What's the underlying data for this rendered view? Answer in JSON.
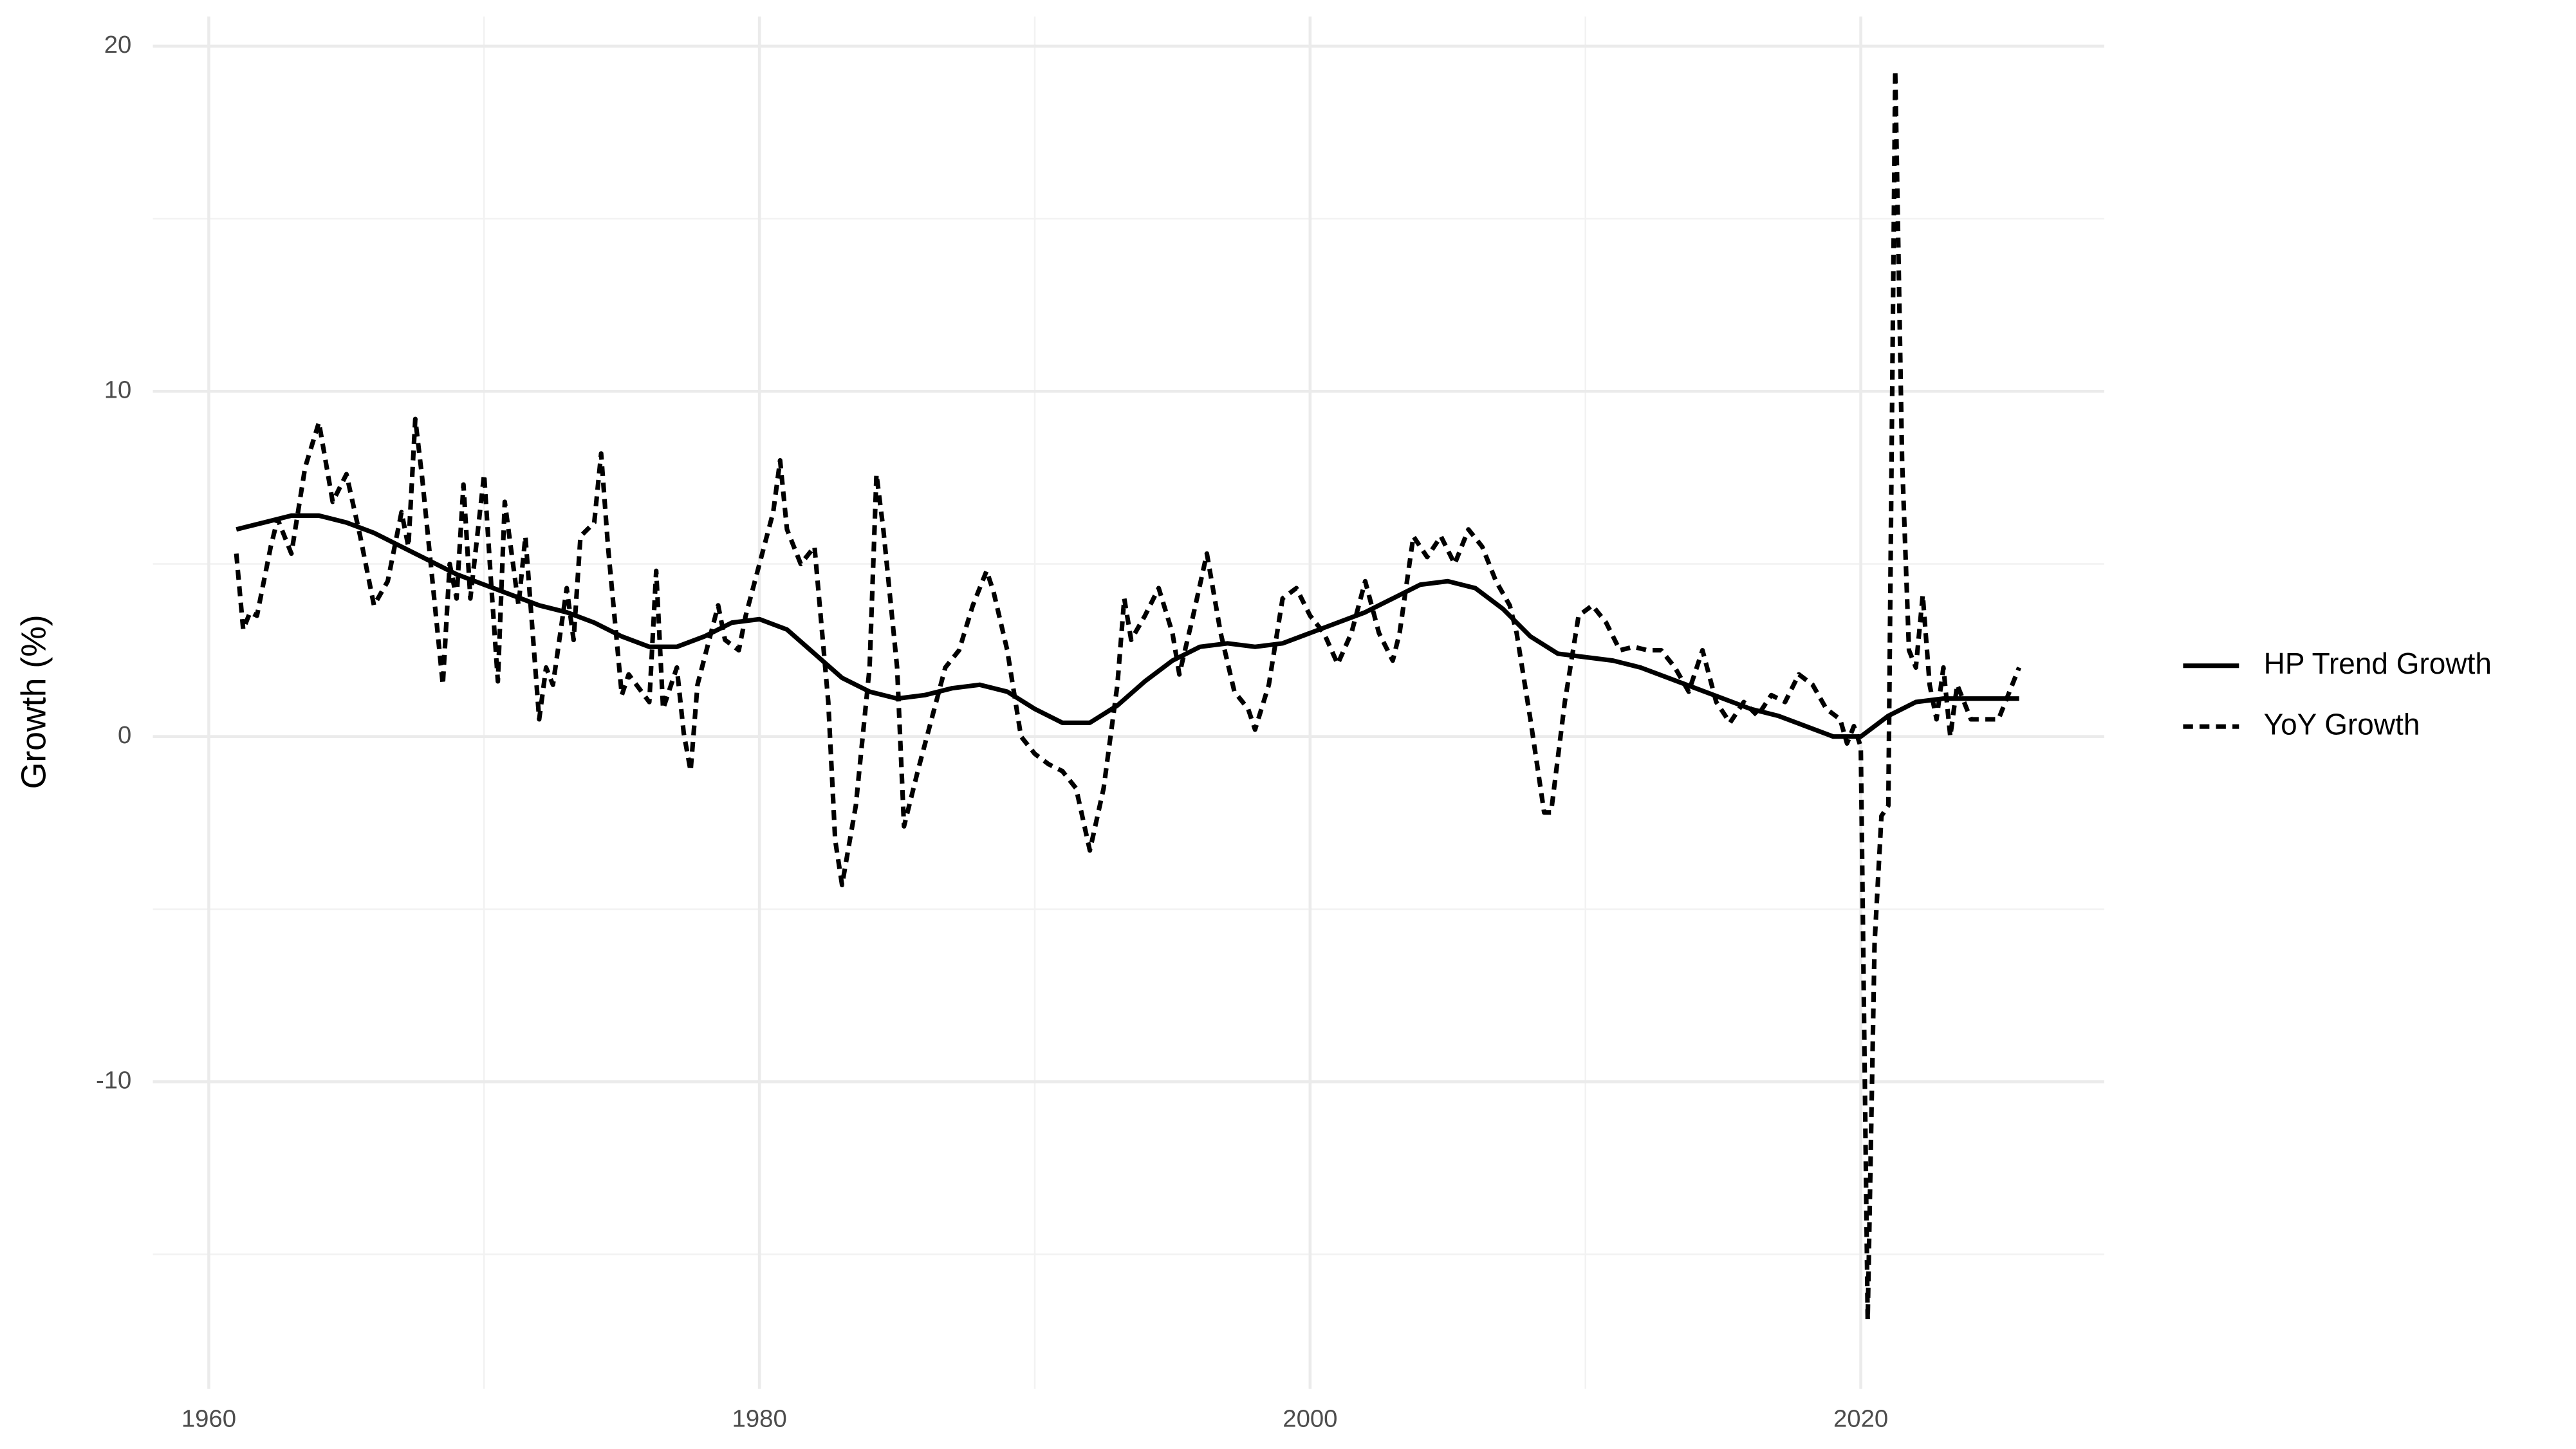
{
  "chart_data": {
    "type": "line",
    "y_label": "Growth (%)",
    "xlim": [
      1957.97,
      2028.84
    ],
    "xticks": [
      1960,
      1980,
      2000,
      2020
    ],
    "minor_xticks": [
      1970,
      1990,
      2010
    ],
    "ylim": [
      -18.9,
      20.86
    ],
    "yticks": [
      -10,
      0,
      10,
      20
    ],
    "minor_yticks": [
      -15,
      -5,
      5,
      15
    ],
    "grid": true,
    "legend": "right",
    "series": [
      {
        "name": "HP Trend Growth",
        "color": "#000000",
        "dash": false,
        "x": [
          1961,
          1962,
          1963,
          1964,
          1965,
          1966,
          1967,
          1968,
          1969,
          1970,
          1971,
          1972,
          1973,
          1974,
          1975,
          1976,
          1977,
          1978,
          1979,
          1980,
          1981,
          1982,
          1983,
          1984,
          1985,
          1986,
          1987,
          1988,
          1989,
          1990,
          1991,
          1992,
          1993,
          1994,
          1995,
          1996,
          1997,
          1998,
          1999,
          2000,
          2001,
          2002,
          2003,
          2004,
          2005,
          2006,
          2007,
          2008,
          2009,
          2010,
          2011,
          2012,
          2013,
          2014,
          2015,
          2016,
          2017,
          2018,
          2019,
          2020,
          2021,
          2022,
          2023,
          2024,
          2025,
          2025.75
        ],
        "values": [
          6.0,
          6.2,
          6.4,
          6.4,
          6.2,
          5.9,
          5.5,
          5.1,
          4.7,
          4.4,
          4.1,
          3.8,
          3.6,
          3.3,
          2.9,
          2.6,
          2.6,
          2.9,
          3.3,
          3.4,
          3.1,
          2.4,
          1.7,
          1.3,
          1.1,
          1.2,
          1.4,
          1.5,
          1.3,
          0.8,
          0.4,
          0.4,
          0.9,
          1.6,
          2.2,
          2.6,
          2.7,
          2.6,
          2.7,
          3.0,
          3.3,
          3.6,
          4.0,
          4.4,
          4.5,
          4.3,
          3.7,
          2.9,
          2.4,
          2.3,
          2.2,
          2.0,
          1.7,
          1.4,
          1.1,
          0.8,
          0.6,
          0.3,
          0.0,
          0.0,
          0.6,
          1.0,
          1.1,
          1.1,
          1.1,
          1.1
        ]
      },
      {
        "name": "YoY Growth",
        "color": "#000000",
        "dash": true,
        "x": [
          1961.0,
          1961.25,
          1961.5,
          1961.75,
          1962.25,
          1962.5,
          1963.0,
          1963.5,
          1964.0,
          1964.5,
          1965.0,
          1965.5,
          1966.0,
          1966.5,
          1967.0,
          1967.25,
          1967.5,
          1967.75,
          1968.0,
          1968.5,
          1968.75,
          1969.0,
          1969.25,
          1969.5,
          1970.0,
          1970.25,
          1970.5,
          1970.75,
          1971.25,
          1971.5,
          1972.0,
          1972.25,
          1972.5,
          1973.0,
          1973.25,
          1973.5,
          1974.0,
          1974.25,
          1974.5,
          1975.0,
          1975.25,
          1976.0,
          1976.25,
          1976.5,
          1977.0,
          1977.25,
          1977.5,
          1977.75,
          1978.5,
          1978.75,
          1979.25,
          1979.5,
          1980.0,
          1980.5,
          1980.75,
          1981.0,
          1981.25,
          1981.5,
          1982.0,
          1982.5,
          1982.75,
          1983.0,
          1983.5,
          1984.0,
          1984.25,
          1984.5,
          1985.0,
          1985.25,
          1985.75,
          1986.25,
          1986.75,
          1987.25,
          1987.75,
          1988.25,
          1988.5,
          1989.0,
          1989.5,
          1990.0,
          1990.5,
          1991.0,
          1991.5,
          1992.0,
          1992.5,
          1993.0,
          1993.25,
          1993.5,
          1994.0,
          1994.5,
          1995.0,
          1995.25,
          1995.75,
          1996.25,
          1996.75,
          1997.25,
          1997.75,
          1998.0,
          1998.5,
          1999.0,
          1999.5,
          2000.0,
          2000.5,
          2001.0,
          2001.5,
          2002.0,
          2002.5,
          2003.0,
          2003.25,
          2003.75,
          2004.25,
          2004.75,
          2005.25,
          2005.75,
          2006.25,
          2006.75,
          2007.25,
          2007.5,
          2008.0,
          2008.5,
          2008.75,
          2009.25,
          2009.75,
          2010.25,
          2010.75,
          2011.25,
          2011.75,
          2012.25,
          2012.75,
          2013.25,
          2013.75,
          2014.25,
          2014.75,
          2015.25,
          2015.75,
          2016.25,
          2016.75,
          2017.25,
          2017.75,
          2018.25,
          2018.75,
          2019.25,
          2019.5,
          2019.75,
          2020.0,
          2020.25,
          2020.5,
          2020.75,
          2021.0,
          2021.25,
          2021.5,
          2021.75,
          2022.0,
          2022.25,
          2022.5,
          2022.75,
          2023.0,
          2023.25,
          2023.5,
          2023.75,
          2024.0,
          2024.5,
          2025.0,
          2025.5,
          2025.75
        ],
        "values": [
          5.3,
          3.1,
          3.6,
          3.5,
          5.5,
          6.3,
          5.3,
          7.8,
          9.1,
          6.8,
          7.6,
          5.8,
          3.8,
          4.5,
          6.5,
          5.5,
          9.2,
          7.5,
          5.5,
          1.5,
          5.0,
          4.0,
          7.3,
          4.0,
          7.6,
          4.5,
          1.6,
          6.8,
          3.8,
          5.8,
          0.5,
          2.0,
          1.5,
          4.3,
          2.8,
          5.8,
          6.2,
          8.2,
          5.5,
          1.2,
          1.8,
          1.0,
          4.8,
          0.8,
          2.0,
          0.1,
          -1.0,
          1.5,
          3.8,
          2.8,
          2.5,
          3.5,
          5.0,
          6.5,
          8.0,
          6.0,
          5.5,
          5.0,
          5.5,
          1.0,
          -3.0,
          -4.3,
          -2.0,
          2.0,
          7.6,
          6.0,
          2.0,
          -2.6,
          -1.0,
          0.5,
          2.0,
          2.5,
          3.8,
          4.8,
          4.2,
          2.5,
          0.0,
          -0.5,
          -0.8,
          -1.0,
          -1.5,
          -3.3,
          -1.5,
          1.5,
          4.0,
          2.8,
          3.5,
          4.3,
          3.0,
          1.8,
          3.5,
          5.3,
          3.0,
          1.3,
          0.8,
          0.2,
          1.5,
          4.0,
          4.3,
          3.5,
          3.0,
          2.1,
          3.0,
          4.5,
          3.0,
          2.2,
          3.0,
          5.8,
          5.2,
          5.8,
          5.0,
          6.0,
          5.5,
          4.5,
          3.8,
          3.0,
          0.5,
          -2.2,
          -2.2,
          1.0,
          3.5,
          3.8,
          3.3,
          2.5,
          2.6,
          2.5,
          2.5,
          2.0,
          1.3,
          2.5,
          1.0,
          0.4,
          1.0,
          0.6,
          1.2,
          1.0,
          1.8,
          1.5,
          0.8,
          0.5,
          -0.2,
          0.3,
          -0.3,
          -16.9,
          -6.0,
          -2.3,
          -2.0,
          19.3,
          8.0,
          2.5,
          2.0,
          4.1,
          1.5,
          0.5,
          2.0,
          0.0,
          1.5,
          1.0,
          0.5,
          0.5,
          0.5,
          1.5,
          2.0
        ]
      }
    ]
  }
}
